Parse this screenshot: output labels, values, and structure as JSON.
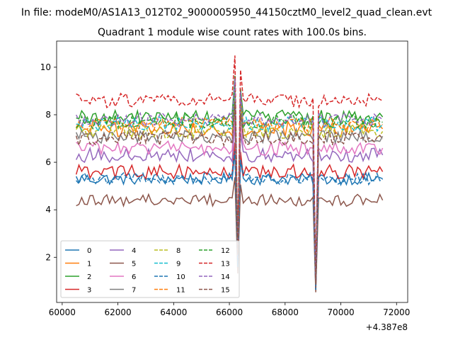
{
  "figure": {
    "suptitle": "In file: modeM0/AS1A13_012T02_9000005950_44150cztM0_level2_quad_clean.evt",
    "title": "Quadrant 1 module wise count rates with 100.0s bins."
  },
  "chart_data": {
    "type": "line",
    "title": "Quadrant 1 module wise count rates with 100.0s bins.",
    "xlabel": "",
    "ylabel": "",
    "x_offset_label": "+4.387e8",
    "xlim": [
      59800,
      72400
    ],
    "ylim": [
      0.1,
      11.1
    ],
    "xticks": [
      60000,
      62000,
      64000,
      66000,
      68000,
      70000,
      72000
    ],
    "xtick_labels": [
      "60000",
      "62000",
      "64000",
      "66000",
      "68000",
      "70000",
      "72000"
    ],
    "yticks": [
      2,
      4,
      6,
      8,
      10
    ],
    "ytick_labels": [
      "2",
      "4",
      "6",
      "8",
      "10"
    ],
    "grid": false,
    "legend_position": "lower-left",
    "legend_columns": 4,
    "bin_width_s": 100,
    "segments": [
      {
        "start": 60500,
        "end": 66200
      },
      {
        "start": 66300,
        "end": 69100
      },
      {
        "start": 69200,
        "end": 71500
      }
    ],
    "dips": [
      {
        "x": 66300,
        "factor": 0.3
      },
      {
        "x": 69100,
        "factor": 0.12
      }
    ],
    "peaks": [
      {
        "x": 66200,
        "factor": 1.22
      },
      {
        "x": 66400,
        "factor": 1.15
      }
    ],
    "series": [
      {
        "name": "0",
        "color": "#1f77b4",
        "dash": "solid",
        "base": 5.3,
        "amp": 0.25
      },
      {
        "name": "1",
        "color": "#ff7f0e",
        "dash": "solid",
        "base": 7.4,
        "amp": 0.35
      },
      {
        "name": "2",
        "color": "#2ca02c",
        "dash": "solid",
        "base": 7.9,
        "amp": 0.3
      },
      {
        "name": "3",
        "color": "#d62728",
        "dash": "solid",
        "base": 5.6,
        "amp": 0.3
      },
      {
        "name": "4",
        "color": "#9467bd",
        "dash": "solid",
        "base": 6.3,
        "amp": 0.3
      },
      {
        "name": "5",
        "color": "#8c564b",
        "dash": "solid",
        "base": 4.4,
        "amp": 0.25
      },
      {
        "name": "6",
        "color": "#e377c2",
        "dash": "solid",
        "base": 6.6,
        "amp": 0.3
      },
      {
        "name": "7",
        "color": "#7f7f7f",
        "dash": "solid",
        "base": 7.1,
        "amp": 0.3
      },
      {
        "name": "8",
        "color": "#bcbd22",
        "dash": "dashed",
        "base": 7.3,
        "amp": 0.3
      },
      {
        "name": "9",
        "color": "#17becf",
        "dash": "dashed",
        "base": 7.6,
        "amp": 0.3
      },
      {
        "name": "10",
        "color": "#1f77b4",
        "dash": "dashed",
        "base": 5.3,
        "amp": 0.25
      },
      {
        "name": "11",
        "color": "#ff7f0e",
        "dash": "dashed",
        "base": 7.6,
        "amp": 0.3
      },
      {
        "name": "12",
        "color": "#2ca02c",
        "dash": "dashed",
        "base": 7.7,
        "amp": 0.3
      },
      {
        "name": "13",
        "color": "#d62728",
        "dash": "dashed",
        "base": 8.6,
        "amp": 0.3
      },
      {
        "name": "14",
        "color": "#9467bd",
        "dash": "dashed",
        "base": 7.8,
        "amp": 0.3
      },
      {
        "name": "15",
        "color": "#8c564b",
        "dash": "dashed",
        "base": 7.0,
        "amp": 0.3
      }
    ]
  }
}
